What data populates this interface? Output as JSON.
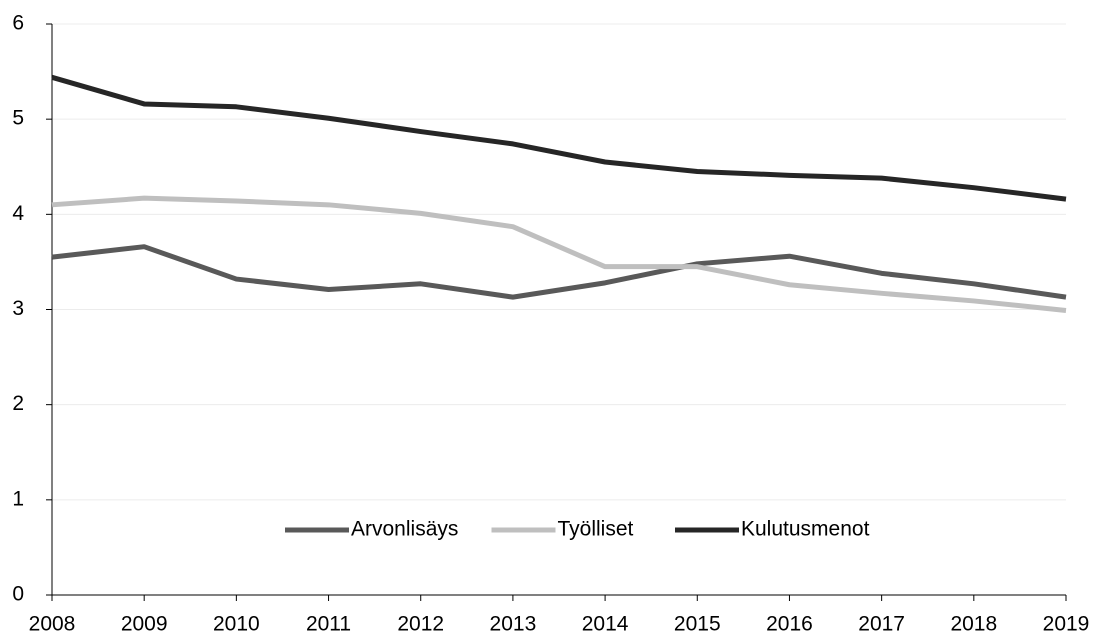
{
  "chart_data": {
    "type": "line",
    "x": [
      2008,
      2009,
      2010,
      2011,
      2012,
      2013,
      2014,
      2015,
      2016,
      2017,
      2018,
      2019
    ],
    "xlim": [
      2008,
      2019
    ],
    "xticks": [
      2008,
      2009,
      2010,
      2011,
      2012,
      2013,
      2014,
      2015,
      2016,
      2017,
      2018,
      2019
    ],
    "ylim": [
      0,
      6
    ],
    "yticks": [
      0,
      1,
      2,
      3,
      4,
      5,
      6
    ],
    "grid": true,
    "legend": "lower center",
    "series": [
      {
        "name": "Arvonlisäys",
        "color": "#595959",
        "values": [
          3.55,
          3.66,
          3.32,
          3.21,
          3.27,
          3.13,
          3.28,
          3.48,
          3.56,
          3.38,
          3.27,
          3.13
        ]
      },
      {
        "name": "Työlliset",
        "color": "#bfbfbf",
        "values": [
          4.1,
          4.17,
          4.14,
          4.1,
          4.01,
          3.87,
          3.45,
          3.45,
          3.26,
          3.17,
          3.09,
          2.99
        ]
      },
      {
        "name": "Kulutusmenot",
        "color": "#262626",
        "values": [
          5.44,
          5.16,
          5.13,
          5.01,
          4.87,
          4.74,
          4.55,
          4.45,
          4.41,
          4.38,
          4.28,
          4.16
        ]
      }
    ]
  }
}
